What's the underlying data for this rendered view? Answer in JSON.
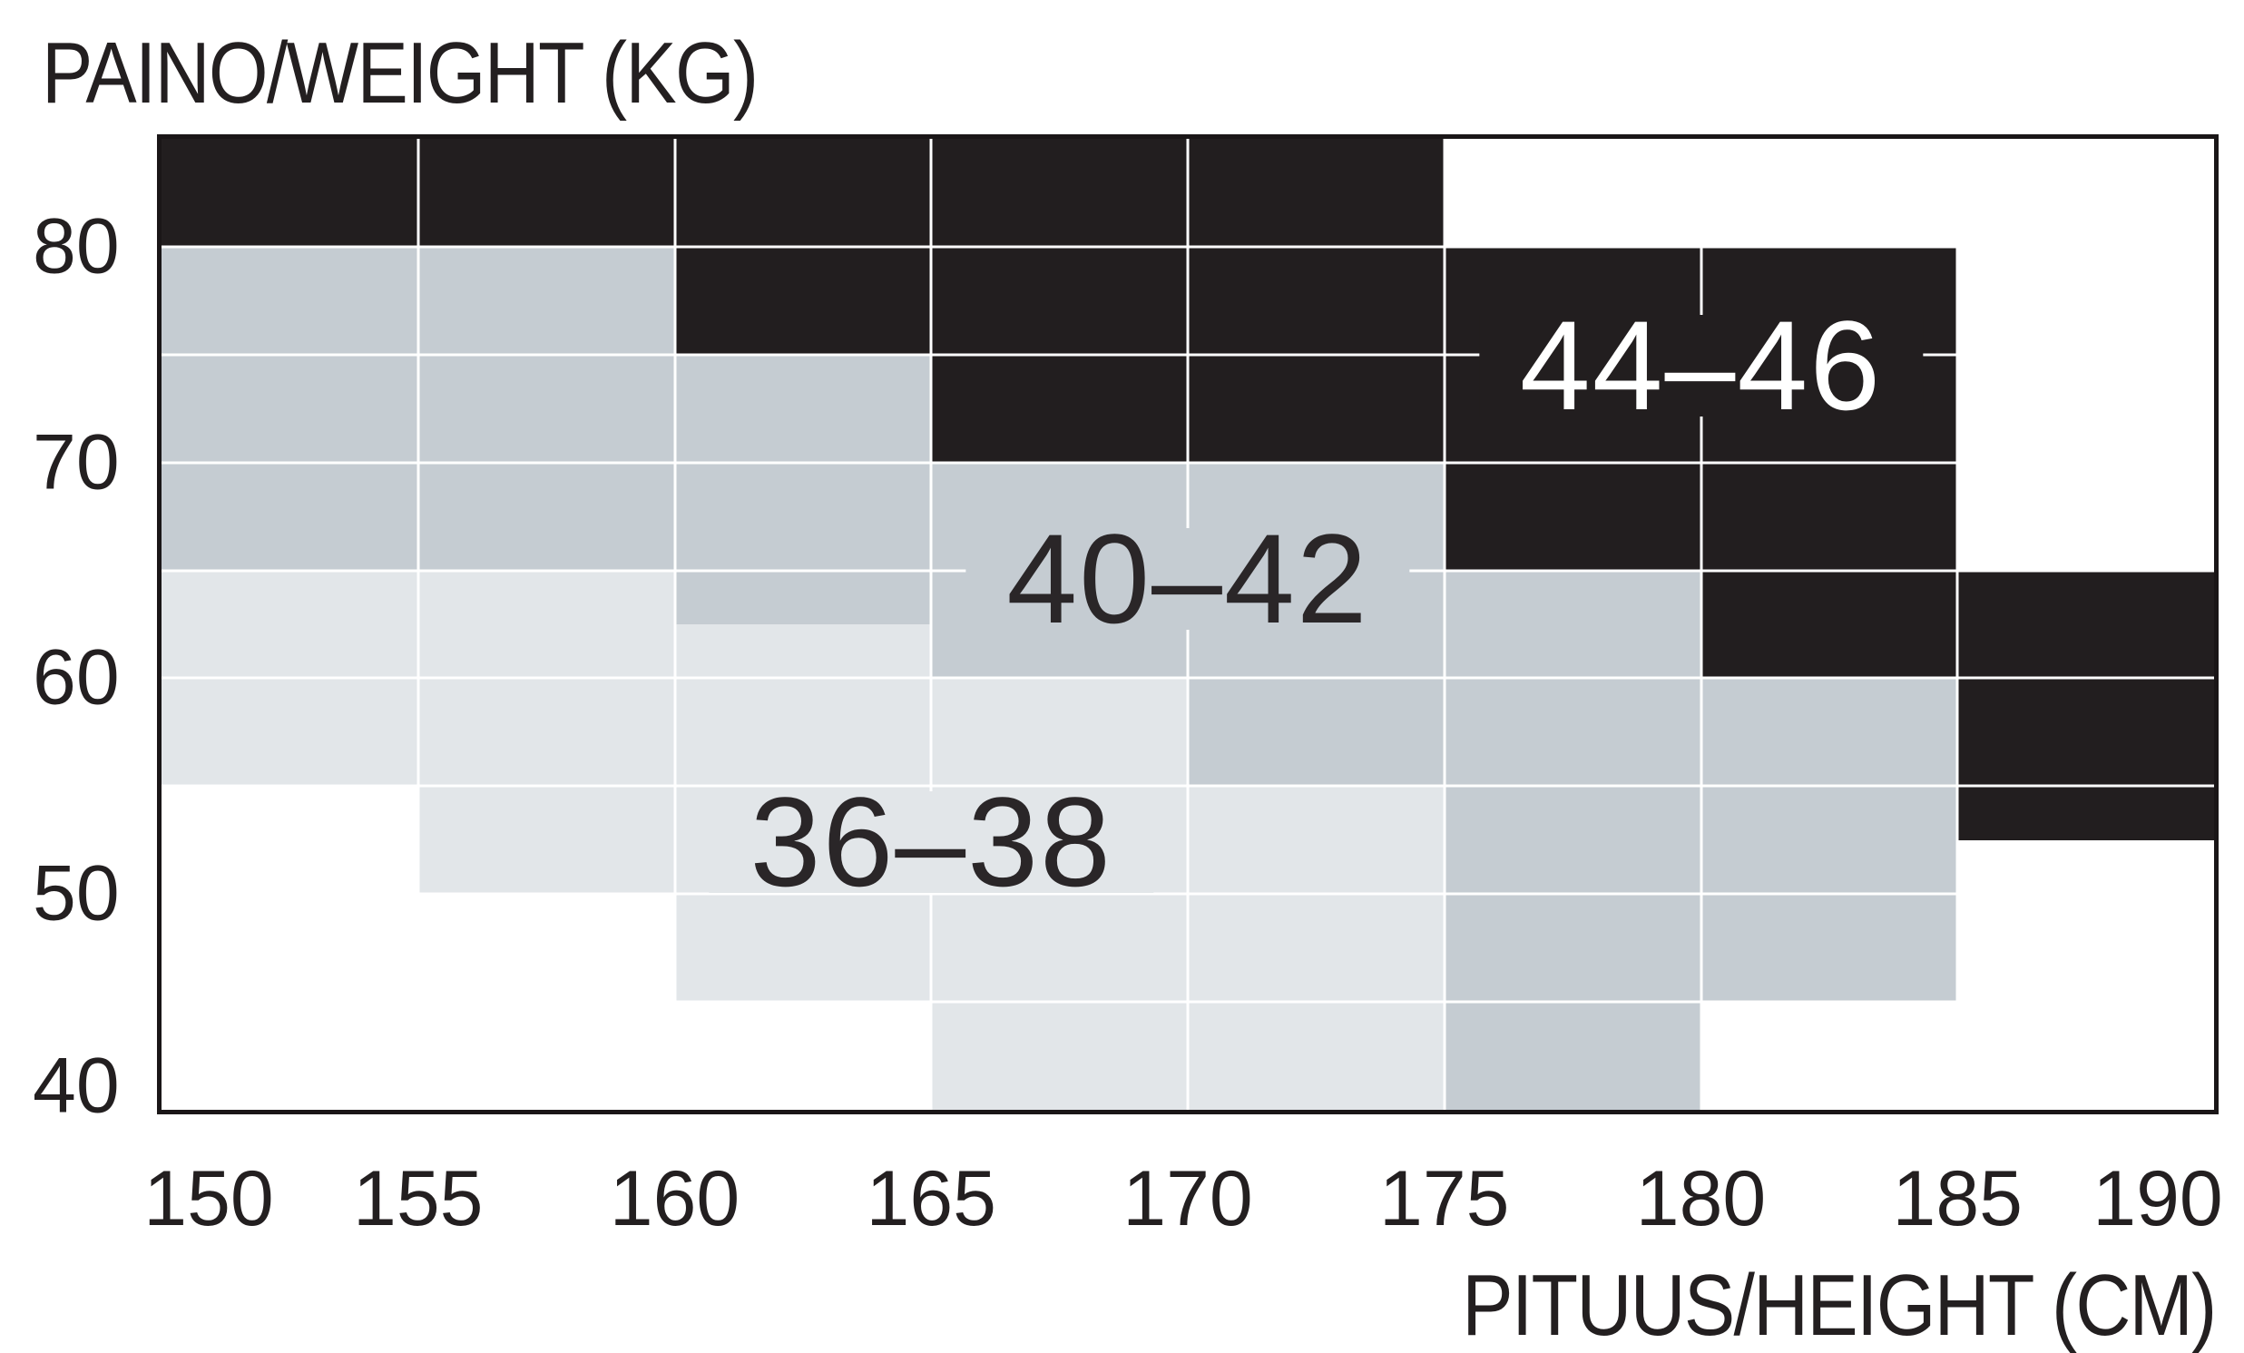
{
  "chart_data": {
    "type": "heatmap",
    "title": "",
    "x_axis": {
      "label": "PITUUS/HEIGHT (CM)",
      "unit": "cm",
      "min": 150,
      "max": 190,
      "ticks": [
        150,
        155,
        160,
        165,
        170,
        175,
        180,
        185,
        190
      ]
    },
    "y_axis": {
      "label": "PAINO/WEIGHT (KG)",
      "unit": "kg",
      "min": 40,
      "max": 85,
      "ticks": [
        80,
        70,
        60,
        50,
        40
      ]
    },
    "grid": {
      "col_step_cm": 5,
      "row_step_kg": 5,
      "line_color": "#ffffff",
      "border_color": "#1a1617"
    },
    "legend_position": "labels-inside-regions",
    "regions": [
      {
        "size": "36–38",
        "color": "#e2e6e9",
        "text_color": "#2a2628",
        "label_center": {
          "cm": 165,
          "kg": 52.4
        },
        "rects": [
          {
            "cm": [
              150,
              155
            ],
            "kg": [
              55,
              65
            ]
          },
          {
            "cm": [
              155,
              160
            ],
            "kg": [
              50,
              65
            ]
          },
          {
            "cm": [
              160,
              165
            ],
            "kg": [
              45,
              62.5
            ]
          },
          {
            "cm": [
              165,
              170
            ],
            "kg": [
              40,
              60
            ]
          },
          {
            "cm": [
              170,
              175
            ],
            "kg": [
              40,
              55
            ]
          }
        ]
      },
      {
        "size": "40–42",
        "color": "#c5ccd2",
        "text_color": "#2a2628",
        "label_center": {
          "cm": 170,
          "kg": 64.6
        },
        "rects": [
          {
            "cm": [
              150,
              160
            ],
            "kg": [
              65,
              80
            ]
          },
          {
            "cm": [
              160,
              165
            ],
            "kg": [
              62.5,
              75
            ]
          },
          {
            "cm": [
              165,
              170
            ],
            "kg": [
              60,
              70
            ]
          },
          {
            "cm": [
              170,
              175
            ],
            "kg": [
              55,
              70
            ]
          },
          {
            "cm": [
              175,
              180
            ],
            "kg": [
              40,
              65
            ]
          },
          {
            "cm": [
              180,
              185
            ],
            "kg": [
              45,
              60
            ]
          }
        ]
      },
      {
        "size": "44–46",
        "color": "#221e1f",
        "text_color": "#ffffff",
        "label_center": {
          "cm": 180,
          "kg": 74.5
        },
        "rects": [
          {
            "cm": [
              150,
              175
            ],
            "kg": [
              80,
              85
            ]
          },
          {
            "cm": [
              160,
              175
            ],
            "kg": [
              75,
              80
            ]
          },
          {
            "cm": [
              165,
              175
            ],
            "kg": [
              70,
              75
            ]
          },
          {
            "cm": [
              175,
              180
            ],
            "kg": [
              65,
              80
            ]
          },
          {
            "cm": [
              180,
              185
            ],
            "kg": [
              60,
              80
            ]
          },
          {
            "cm": [
              185,
              190
            ],
            "kg": [
              52.5,
              65
            ]
          }
        ]
      }
    ]
  }
}
